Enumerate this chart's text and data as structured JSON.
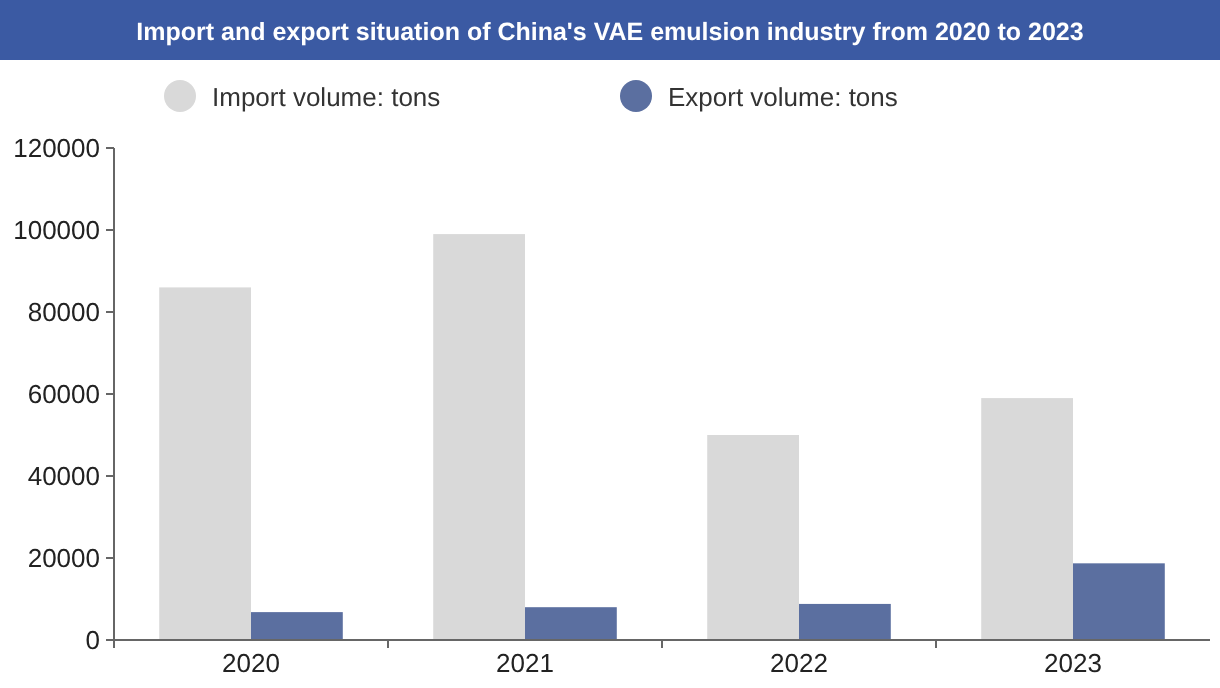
{
  "chart_data": {
    "type": "bar",
    "title": "Import and export situation of China's VAE emulsion industry from 2020 to 2023",
    "categories": [
      "2020",
      "2021",
      "2022",
      "2023"
    ],
    "series": [
      {
        "name": "Import volume: tons",
        "color": "#d9d9d9",
        "values": [
          86000,
          99000,
          50000,
          59000
        ]
      },
      {
        "name": "Export volume: tons",
        "color": "#5b6fa0",
        "values": [
          6800,
          8000,
          8800,
          18700
        ]
      }
    ],
    "ylim": [
      0,
      120000
    ],
    "yticks": [
      0,
      20000,
      40000,
      60000,
      80000,
      100000,
      120000
    ],
    "grid": false,
    "legend": "top"
  }
}
